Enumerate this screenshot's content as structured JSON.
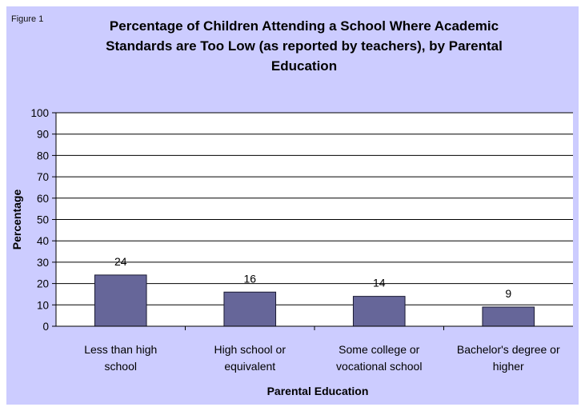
{
  "figure_label": "Figure 1",
  "chart_data": {
    "type": "bar",
    "title": "Percentage of Children Attending a School Where Academic\nStandards are Too Low  (as reported by teachers), by Parental\nEducation",
    "xlabel": "Parental Education",
    "ylabel": "Percentage",
    "categories": [
      [
        "Less than high",
        "school"
      ],
      [
        "High school or",
        "equivalent"
      ],
      [
        "Some college or",
        "vocational school"
      ],
      [
        "Bachelor's degree or",
        "higher"
      ]
    ],
    "values": [
      24,
      16,
      14,
      9
    ],
    "data_labels": [
      "24",
      "16",
      "14",
      "9"
    ],
    "ylim": [
      0,
      100
    ],
    "yticks": [
      0,
      10,
      20,
      30,
      40,
      50,
      60,
      70,
      80,
      90,
      100
    ],
    "grid": true,
    "legend": "none",
    "colors": {
      "frame_bg": "#ccccff",
      "plot_bg": "#ffffff",
      "bar_fill": "#666699",
      "bar_stroke": "#1a1a33",
      "gridline": "#000000"
    }
  }
}
